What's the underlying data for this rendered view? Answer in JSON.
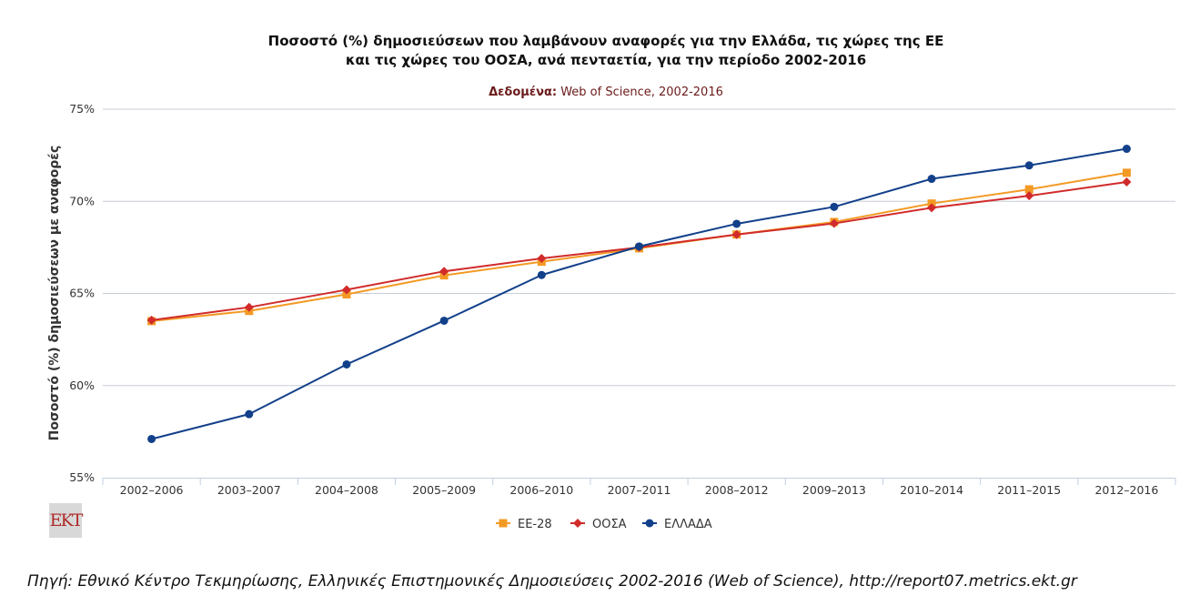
{
  "chart_data": {
    "type": "line",
    "title_line1": "Ποσοστό (%) δημοσιεύσεων που λαμβάνουν αναφορές για την Ελλάδα, τις χώρες της ΕΕ",
    "title_line2": "και τις χώρες του ΟΟΣΑ, ανά πενταετία, για την περίοδο 2002-2016",
    "subtitle_label": "Δεδομένα:",
    "subtitle_value": " Web of Science, 2002-2016",
    "ylabel": "Ποσοστό (%) δημοσιεύσεων με αναφορές",
    "xlabel": "",
    "ylim": [
      55,
      75
    ],
    "yticks": [
      55,
      60,
      65,
      70,
      75
    ],
    "ytick_suffix": "%",
    "grid": true,
    "legend_position": "bottom-center",
    "categories": [
      "2002–2006",
      "2003–2007",
      "2004–2008",
      "2005–2009",
      "2006–2010",
      "2007–2011",
      "2008–2012",
      "2009–2013",
      "2010–2014",
      "2011–2015",
      "2012–2016"
    ],
    "series": [
      {
        "name": "ΕΕ-28",
        "color": "#f39a24",
        "marker": "square",
        "values": [
          63.5,
          64.05,
          64.95,
          65.98,
          66.72,
          67.45,
          68.2,
          68.88,
          69.88,
          70.65,
          71.55
        ]
      },
      {
        "name": "ΟΟΣΑ",
        "color": "#d12b2b",
        "marker": "diamond",
        "values": [
          63.55,
          64.25,
          65.2,
          66.2,
          66.9,
          67.5,
          68.2,
          68.8,
          69.65,
          70.3,
          71.05
        ]
      },
      {
        "name": "ΕΛΛΑΔΑ",
        "color": "#12408a",
        "marker": "circle",
        "values": [
          57.1,
          58.45,
          61.15,
          63.52,
          66.0,
          67.55,
          68.78,
          69.7,
          71.22,
          71.95,
          72.85
        ]
      }
    ]
  },
  "logo_text": "ΕΚΤ",
  "source_note": "Πηγή: Εθνικό Κέντρο Τεκμηρίωσης, Ελληνικές Επιστημονικές Δημοσιεύσεις 2002-2016 (Web of Science), http://report07.metrics.ekt.gr"
}
